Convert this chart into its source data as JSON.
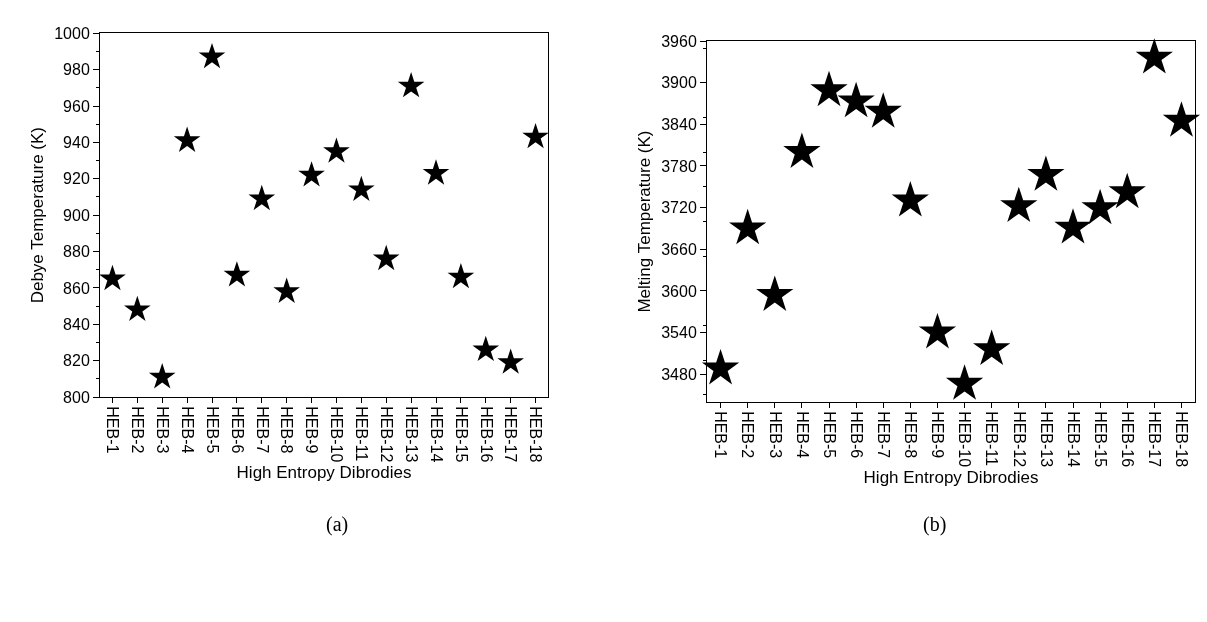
{
  "chart_data": [
    {
      "type": "scatter",
      "xlabel": "High Entropy Dibrodies",
      "ylabel": "Debye Temperature (K)",
      "annotations": [
        "(a)"
      ],
      "categories": [
        "HEB-1",
        "HEB-2",
        "HEB-3",
        "HEB-4",
        "HEB-5",
        "HEB-6",
        "HEB-7",
        "HEB-8",
        "HEB-9",
        "HEB-10",
        "HEB-11",
        "HEB-12",
        "HEB-13",
        "HEB-14",
        "HEB-15",
        "HEB-16",
        "HEB-17",
        "HEB-18"
      ],
      "series": [
        {
          "color": "#000000",
          "values": [
            865,
            848,
            811,
            941,
            987,
            867,
            909,
            858,
            922,
            935,
            914,
            876,
            971,
            923,
            866,
            826,
            819,
            943
          ]
        }
      ],
      "ylim": [
        800,
        1000
      ],
      "yticks": [
        800,
        820,
        840,
        860,
        880,
        900,
        920,
        940,
        960,
        980,
        1000
      ],
      "marker": "star"
    },
    {
      "type": "scatter",
      "xlabel": "High Entropy Dibrodies",
      "ylabel": "Melting Temperature (K)",
      "annotations": [
        "(b)"
      ],
      "categories": [
        "HEB-1",
        "HEB-2",
        "HEB-3",
        "HEB-4",
        "HEB-5",
        "HEB-6",
        "HEB-7",
        "HEB-8",
        "HEB-9",
        "HEB-10",
        "HEB-11",
        "HEB-12",
        "HEB-13",
        "HEB-14",
        "HEB-15",
        "HEB-16",
        "HEB-17",
        "HEB-18"
      ],
      "series": [
        {
          "color": "#000000",
          "values": [
            3488,
            3690,
            3594,
            3800,
            3889,
            3873,
            3858,
            3730,
            3540,
            3466,
            3516,
            3722,
            3767,
            3691,
            3719,
            3742,
            3936,
            3845
          ]
        }
      ],
      "ylim": [
        3440,
        3960
      ],
      "yticks": [
        3480,
        3540,
        3600,
        3660,
        3720,
        3780,
        3840,
        3900,
        3960
      ],
      "marker": "star"
    }
  ]
}
